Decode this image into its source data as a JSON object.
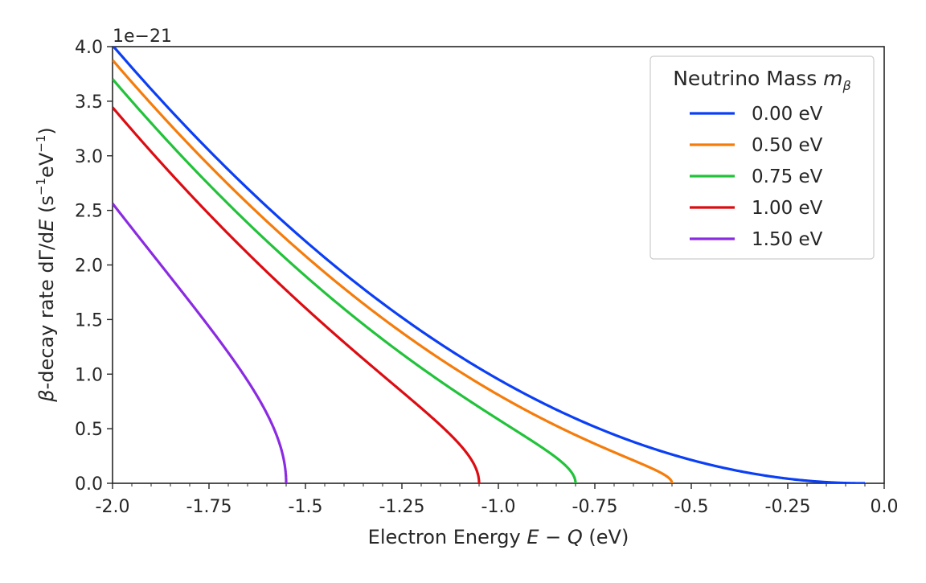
{
  "chart_data": {
    "type": "line",
    "xlabel_prefix": "Electron Energy ",
    "xlabel_math": "E − Q",
    "xlabel_suffix": " (eV)",
    "ylabel_prefix": "-decay rate dΓ/d",
    "ylabel_beta": "β",
    "ylabel_E": "E",
    "ylabel_unit_1": " (s",
    "ylabel_sup1": "−1",
    "ylabel_unit_2": "eV",
    "ylabel_sup2": "−1",
    "ylabel_unit_3": ")",
    "y_offset_text": "1e−21",
    "xlim": [
      -2.0,
      0.0
    ],
    "ylim": [
      0.0,
      4.0
    ],
    "x_ticks": [
      -2.0,
      -1.75,
      -1.5,
      -1.25,
      -1.0,
      -0.75,
      -0.5,
      -0.25,
      0.0
    ],
    "x_tick_labels": [
      "-2.0",
      "-1.75",
      "-1.5",
      "-1.25",
      "-1.0",
      "-0.75",
      "-0.5",
      "-0.25",
      "0.0"
    ],
    "y_ticks": [
      0.0,
      0.5,
      1.0,
      1.5,
      2.0,
      2.5,
      3.0,
      3.5,
      4.0
    ],
    "y_tick_labels": [
      "0.0",
      "0.5",
      "1.0",
      "1.5",
      "2.0",
      "2.5",
      "3.0",
      "3.5",
      "4.0"
    ],
    "grid": false,
    "legend": {
      "title_prefix": "Neutrino Mass ",
      "title_math": "m",
      "title_sub": "β",
      "placement": "top-right"
    },
    "endpoint_shift": 0.05,
    "amplitude": 1.055,
    "series": [
      {
        "name": "0.00 eV",
        "mass": 0.0,
        "color": "#0b3ff5"
      },
      {
        "name": "0.50 eV",
        "mass": 0.5,
        "color": "#f57c0b"
      },
      {
        "name": "0.75 eV",
        "mass": 0.75,
        "color": "#22c23a"
      },
      {
        "name": "1.00 eV",
        "mass": 1.0,
        "color": "#dc0c12"
      },
      {
        "name": "1.50 eV",
        "mass": 1.5,
        "color": "#8a2be2"
      }
    ]
  }
}
